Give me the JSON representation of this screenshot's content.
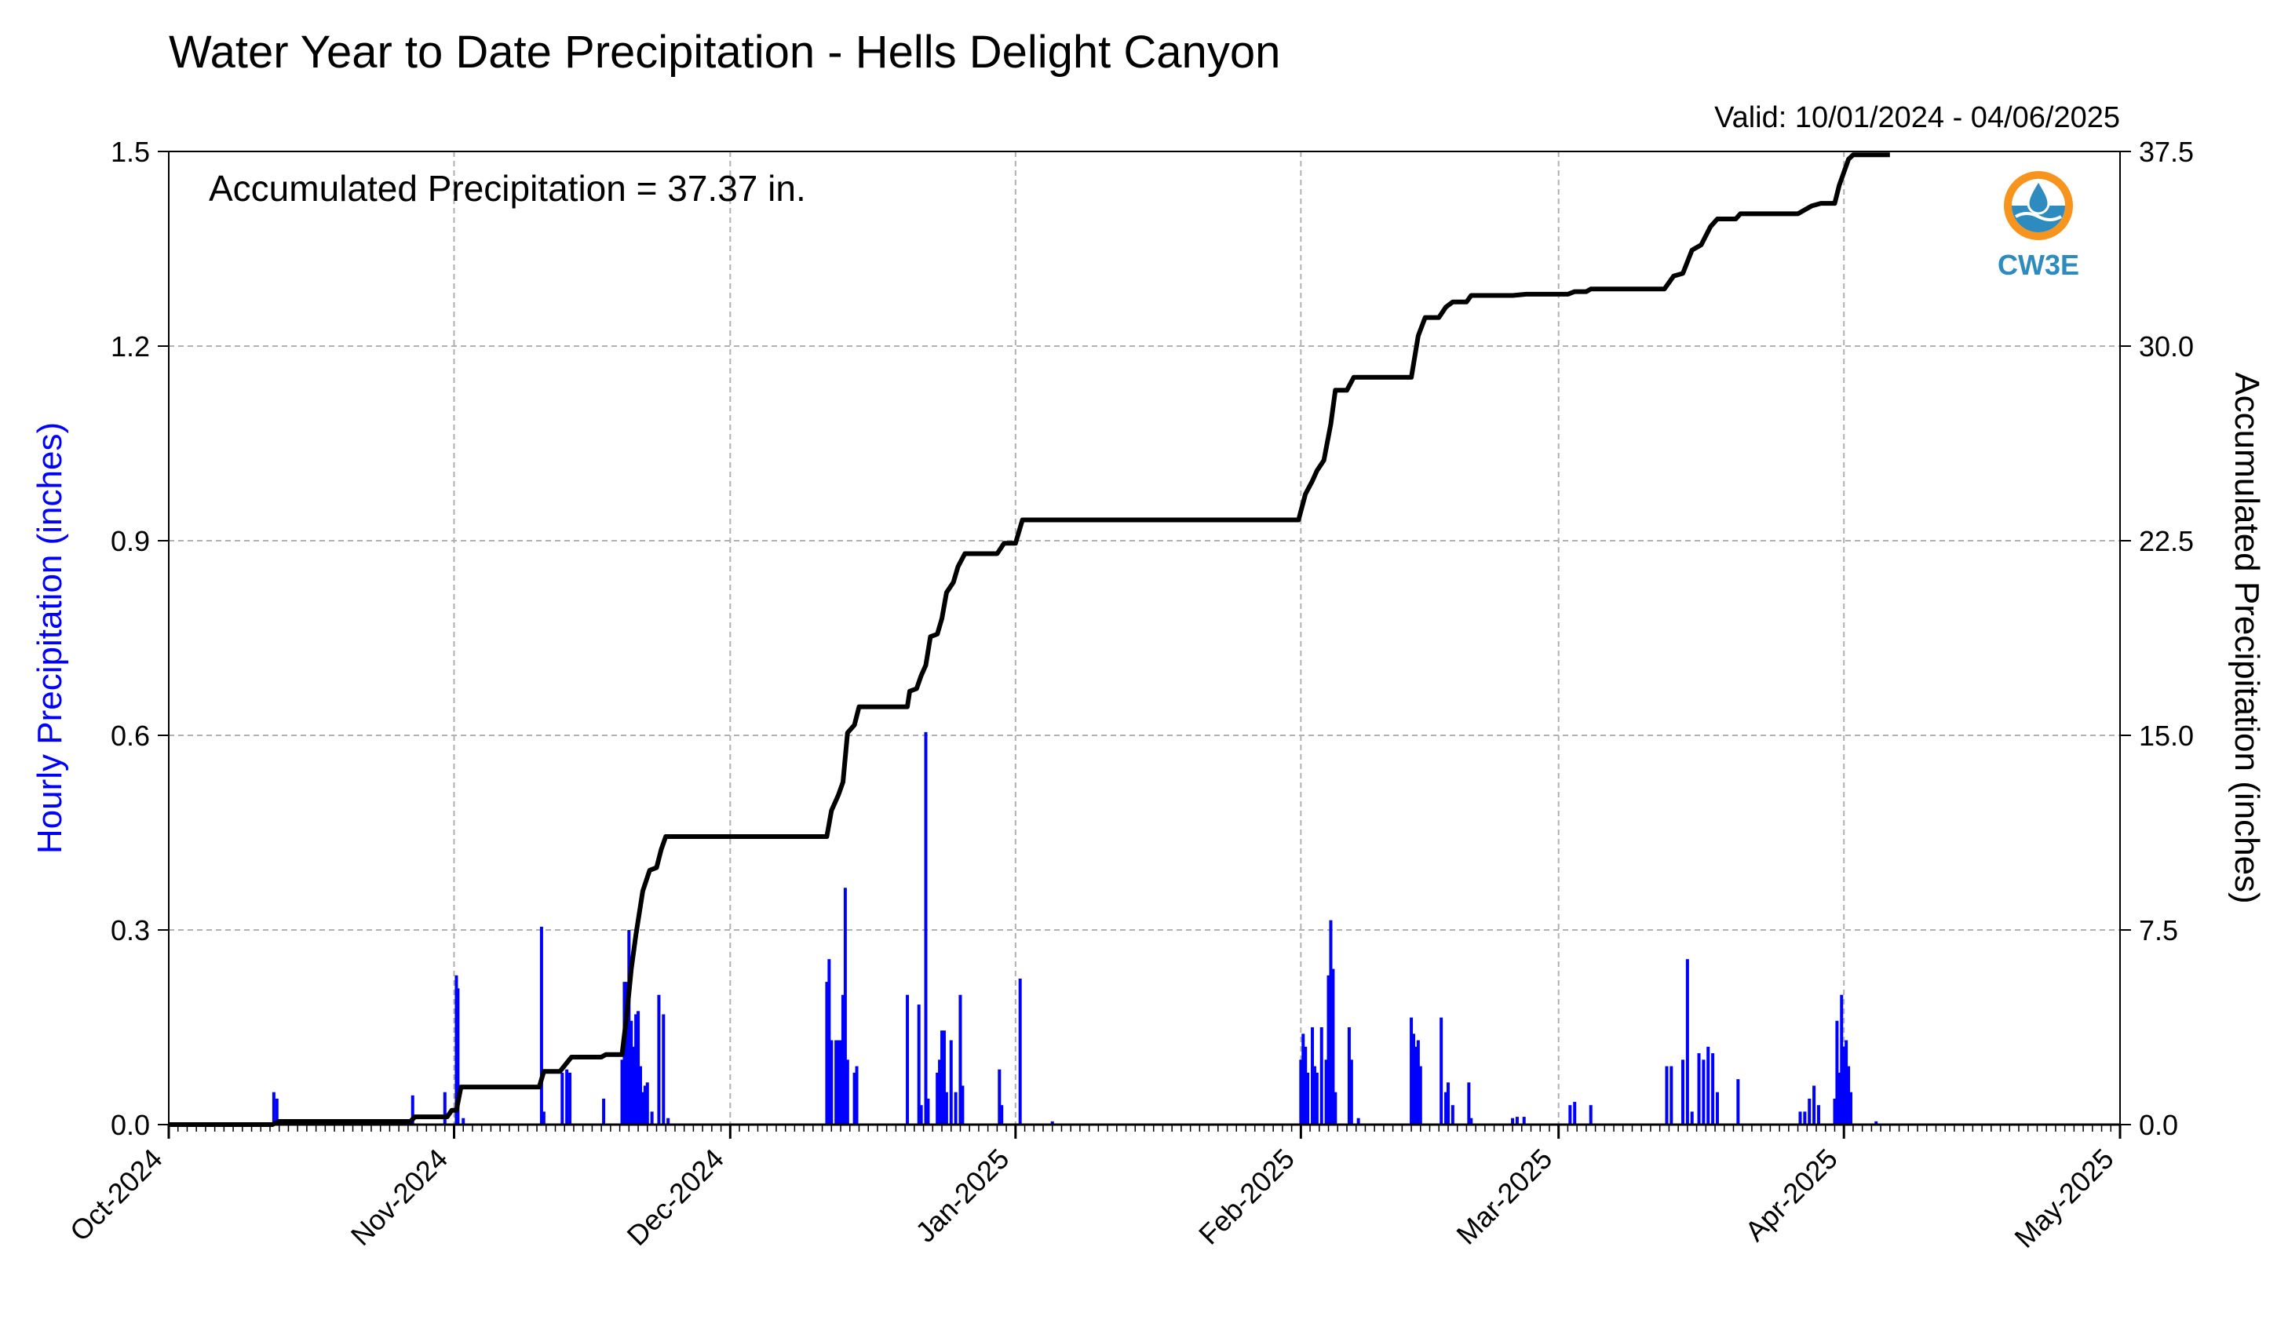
{
  "chart_data": {
    "type": "bar",
    "title": "Water Year to Date Precipitation - Hells Delight Canyon",
    "subtitle": "Valid: 10/01/2024 - 04/06/2025",
    "annotation": "Accumulated Precipitation = 37.37 in.",
    "logo_text": "CW3E",
    "ylabel": "Hourly Precipitation (inches)",
    "y2label": "Accumulated Precipitation (inches)",
    "ylim": [
      0,
      1.5
    ],
    "y2lim": [
      0,
      37.5
    ],
    "xlim": [
      "2024-10-01",
      "2025-05-01"
    ],
    "grid": true,
    "colors": {
      "hourly": "#0000ff",
      "accumulated": "#000000",
      "grid": "#b0b0b0",
      "ylabel": "#0000ff",
      "logo_ring": "#f7941d",
      "logo_body": "#2e8bc0"
    },
    "yticks": [
      "0.0",
      "0.3",
      "0.6",
      "0.9",
      "1.2",
      "1.5"
    ],
    "y2ticks": [
      "0.0",
      "7.5",
      "15.0",
      "22.5",
      "30.0",
      "37.5"
    ],
    "xticks": [
      {
        "date": "2024-10-01",
        "label": "Oct-2024"
      },
      {
        "date": "2024-11-01",
        "label": "Nov-2024"
      },
      {
        "date": "2024-12-01",
        "label": "Dec-2024"
      },
      {
        "date": "2025-01-01",
        "label": "Jan-2025"
      },
      {
        "date": "2025-02-01",
        "label": "Feb-2025"
      },
      {
        "date": "2025-03-01",
        "label": "Mar-2025"
      },
      {
        "date": "2025-04-01",
        "label": "Apr-2025"
      },
      {
        "date": "2025-05-01",
        "label": "May-2025"
      }
    ],
    "series": [
      {
        "name": "Hourly Precipitation",
        "type": "bar",
        "points": [
          [
            "2024-10-12T10:00",
            0.05
          ],
          [
            "2024-10-12T18:00",
            0.04
          ],
          [
            "2024-10-27T12:00",
            0.045
          ],
          [
            "2024-10-31T00:00",
            0.05
          ],
          [
            "2024-11-01T06:00",
            0.23
          ],
          [
            "2024-11-01T10:00",
            0.21
          ],
          [
            "2024-11-02T00:00",
            0.01
          ],
          [
            "2024-11-10T12:00",
            0.305
          ],
          [
            "2024-11-10T18:00",
            0.02
          ],
          [
            "2024-11-12T18:00",
            0.08
          ],
          [
            "2024-11-13T06:00",
            0.085
          ],
          [
            "2024-11-13T14:00",
            0.08
          ],
          [
            "2024-11-17T06:00",
            0.04
          ],
          [
            "2024-11-19T06:00",
            0.1
          ],
          [
            "2024-11-19T12:00",
            0.22
          ],
          [
            "2024-11-19T18:00",
            0.22
          ],
          [
            "2024-11-20T00:00",
            0.3
          ],
          [
            "2024-11-20T06:00",
            0.16
          ],
          [
            "2024-11-20T12:00",
            0.12
          ],
          [
            "2024-11-20T18:00",
            0.17
          ],
          [
            "2024-11-21T00:00",
            0.175
          ],
          [
            "2024-11-21T06:00",
            0.09
          ],
          [
            "2024-11-21T12:00",
            0.05
          ],
          [
            "2024-11-21T18:00",
            0.06
          ],
          [
            "2024-11-22T00:00",
            0.065
          ],
          [
            "2024-11-22T12:00",
            0.02
          ],
          [
            "2024-11-23T06:00",
            0.2
          ],
          [
            "2024-11-23T18:00",
            0.17
          ],
          [
            "2024-11-24T06:00",
            0.01
          ],
          [
            "2024-12-11T12:00",
            0.22
          ],
          [
            "2024-12-11T18:00",
            0.255
          ],
          [
            "2024-12-12T00:00",
            0.13
          ],
          [
            "2024-12-12T12:00",
            0.13
          ],
          [
            "2024-12-12T18:00",
            0.13
          ],
          [
            "2024-12-13T00:00",
            0.13
          ],
          [
            "2024-12-13T06:00",
            0.2
          ],
          [
            "2024-12-13T12:00",
            0.365
          ],
          [
            "2024-12-13T18:00",
            0.1
          ],
          [
            "2024-12-14T12:00",
            0.08
          ],
          [
            "2024-12-14T18:00",
            0.09
          ],
          [
            "2024-12-20T06:00",
            0.2
          ],
          [
            "2024-12-21T12:00",
            0.185
          ],
          [
            "2024-12-21T18:00",
            0.03
          ],
          [
            "2024-12-22T06:00",
            0.605
          ],
          [
            "2024-12-22T12:00",
            0.04
          ],
          [
            "2024-12-23T12:00",
            0.08
          ],
          [
            "2024-12-23T18:00",
            0.1
          ],
          [
            "2024-12-24T00:00",
            0.145
          ],
          [
            "2024-12-24T06:00",
            0.145
          ],
          [
            "2024-12-24T12:00",
            0.05
          ],
          [
            "2024-12-25T00:00",
            0.13
          ],
          [
            "2024-12-25T12:00",
            0.05
          ],
          [
            "2024-12-26T00:00",
            0.2
          ],
          [
            "2024-12-26T06:00",
            0.06
          ],
          [
            "2024-12-30T06:00",
            0.085
          ],
          [
            "2024-12-30T12:00",
            0.03
          ],
          [
            "2025-01-01T12:00",
            0.225
          ],
          [
            "2025-01-05T00:00",
            0.005
          ],
          [
            "2025-02-01T00:00",
            0.1
          ],
          [
            "2025-02-01T06:00",
            0.14
          ],
          [
            "2025-02-01T12:00",
            0.12
          ],
          [
            "2025-02-01T18:00",
            0.08
          ],
          [
            "2025-02-02T06:00",
            0.15
          ],
          [
            "2025-02-02T12:00",
            0.09
          ],
          [
            "2025-02-02T18:00",
            0.08
          ],
          [
            "2025-02-03T06:00",
            0.15
          ],
          [
            "2025-02-03T18:00",
            0.1
          ],
          [
            "2025-02-04T00:00",
            0.23
          ],
          [
            "2025-02-04T06:00",
            0.315
          ],
          [
            "2025-02-04T12:00",
            0.24
          ],
          [
            "2025-02-04T18:00",
            0.05
          ],
          [
            "2025-02-06T06:00",
            0.15
          ],
          [
            "2025-02-06T12:00",
            0.1
          ],
          [
            "2025-02-07T06:00",
            0.01
          ],
          [
            "2025-02-13T00:00",
            0.165
          ],
          [
            "2025-02-13T06:00",
            0.14
          ],
          [
            "2025-02-13T12:00",
            0.12
          ],
          [
            "2025-02-13T18:00",
            0.13
          ],
          [
            "2025-02-14T00:00",
            0.09
          ],
          [
            "2025-02-16T06:00",
            0.165
          ],
          [
            "2025-02-16T18:00",
            0.05
          ],
          [
            "2025-02-17T00:00",
            0.065
          ],
          [
            "2025-02-17T12:00",
            0.03
          ],
          [
            "2025-02-19T06:00",
            0.065
          ],
          [
            "2025-02-19T12:00",
            0.01
          ],
          [
            "2025-02-24T00:00",
            0.01
          ],
          [
            "2025-02-24T12:00",
            0.012
          ],
          [
            "2025-02-25T06:00",
            0.012
          ],
          [
            "2025-03-02T06:00",
            0.03
          ],
          [
            "2025-03-02T18:00",
            0.035
          ],
          [
            "2025-03-04T12:00",
            0.03
          ],
          [
            "2025-03-12T18:00",
            0.09
          ],
          [
            "2025-03-13T06:00",
            0.09
          ],
          [
            "2025-03-14T12:00",
            0.1
          ],
          [
            "2025-03-15T00:00",
            0.255
          ],
          [
            "2025-03-15T12:00",
            0.02
          ],
          [
            "2025-03-16T06:00",
            0.11
          ],
          [
            "2025-03-16T18:00",
            0.1
          ],
          [
            "2025-03-17T06:00",
            0.12
          ],
          [
            "2025-03-17T18:00",
            0.11
          ],
          [
            "2025-03-18T06:00",
            0.05
          ],
          [
            "2025-03-20T12:00",
            0.07
          ],
          [
            "2025-03-27T06:00",
            0.02
          ],
          [
            "2025-03-27T18:00",
            0.02
          ],
          [
            "2025-03-28T06:00",
            0.04
          ],
          [
            "2025-03-28T18:00",
            0.06
          ],
          [
            "2025-03-29T06:00",
            0.03
          ],
          [
            "2025-03-31T00:00",
            0.04
          ],
          [
            "2025-03-31T06:00",
            0.16
          ],
          [
            "2025-03-31T12:00",
            0.08
          ],
          [
            "2025-03-31T18:00",
            0.2
          ],
          [
            "2025-04-01T00:00",
            0.12
          ],
          [
            "2025-04-01T06:00",
            0.13
          ],
          [
            "2025-04-01T12:00",
            0.09
          ],
          [
            "2025-04-01T18:00",
            0.05
          ],
          [
            "2025-04-04T12:00",
            0.005
          ]
        ]
      },
      {
        "name": "Accumulated Precipitation",
        "type": "line",
        "points": [
          [
            "2024-10-01T00:00",
            0.0
          ],
          [
            "2024-10-12T06:00",
            0.0
          ],
          [
            "2024-10-13T00:00",
            0.12
          ],
          [
            "2024-10-27T06:00",
            0.12
          ],
          [
            "2024-10-27T18:00",
            0.3
          ],
          [
            "2024-10-31T06:00",
            0.3
          ],
          [
            "2024-10-31T18:00",
            0.55
          ],
          [
            "2024-11-01T06:00",
            0.55
          ],
          [
            "2024-11-01T18:00",
            1.45
          ],
          [
            "2024-11-10T06:00",
            1.45
          ],
          [
            "2024-11-10T18:00",
            2.05
          ],
          [
            "2024-11-12T12:00",
            2.05
          ],
          [
            "2024-11-13T18:00",
            2.6
          ],
          [
            "2024-11-17T00:00",
            2.6
          ],
          [
            "2024-11-17T12:00",
            2.7
          ],
          [
            "2024-11-19T06:00",
            2.7
          ],
          [
            "2024-11-19T18:00",
            4.2
          ],
          [
            "2024-11-20T06:00",
            6.0
          ],
          [
            "2024-11-20T18:00",
            7.3
          ],
          [
            "2024-11-21T12:00",
            9.0
          ],
          [
            "2024-11-22T06:00",
            9.8
          ],
          [
            "2024-11-23T00:00",
            9.9
          ],
          [
            "2024-11-23T12:00",
            10.6
          ],
          [
            "2024-11-24T00:00",
            11.1
          ],
          [
            "2024-12-11T12:00",
            11.1
          ],
          [
            "2024-12-12T00:00",
            12.1
          ],
          [
            "2024-12-12T18:00",
            12.7
          ],
          [
            "2024-12-13T06:00",
            13.2
          ],
          [
            "2024-12-13T18:00",
            15.1
          ],
          [
            "2024-12-14T12:00",
            15.4
          ],
          [
            "2024-12-15T00:00",
            16.1
          ],
          [
            "2024-12-20T06:00",
            16.1
          ],
          [
            "2024-12-20T12:00",
            16.7
          ],
          [
            "2024-12-21T06:00",
            16.8
          ],
          [
            "2024-12-21T18:00",
            17.3
          ],
          [
            "2024-12-22T06:00",
            17.7
          ],
          [
            "2024-12-22T18:00",
            18.8
          ],
          [
            "2024-12-23T12:00",
            18.9
          ],
          [
            "2024-12-24T00:00",
            19.5
          ],
          [
            "2024-12-24T12:00",
            20.5
          ],
          [
            "2024-12-25T06:00",
            20.9
          ],
          [
            "2024-12-25T18:00",
            21.5
          ],
          [
            "2024-12-26T12:00",
            22.0
          ],
          [
            "2024-12-30T00:00",
            22.0
          ],
          [
            "2024-12-30T18:00",
            22.4
          ],
          [
            "2025-01-01T00:00",
            22.4
          ],
          [
            "2025-01-01T18:00",
            23.3
          ],
          [
            "2025-01-31T18:00",
            23.3
          ],
          [
            "2025-02-01T12:00",
            24.3
          ],
          [
            "2025-02-02T06:00",
            24.8
          ],
          [
            "2025-02-02T18:00",
            25.2
          ],
          [
            "2025-02-03T12:00",
            25.6
          ],
          [
            "2025-02-04T06:00",
            27.0
          ],
          [
            "2025-02-04T18:00",
            28.3
          ],
          [
            "2025-02-06T00:00",
            28.3
          ],
          [
            "2025-02-06T18:00",
            28.8
          ],
          [
            "2025-02-13T00:00",
            28.8
          ],
          [
            "2025-02-13T18:00",
            30.4
          ],
          [
            "2025-02-14T12:00",
            31.1
          ],
          [
            "2025-02-16T00:00",
            31.1
          ],
          [
            "2025-02-16T18:00",
            31.5
          ],
          [
            "2025-02-17T12:00",
            31.7
          ],
          [
            "2025-02-19T00:00",
            31.7
          ],
          [
            "2025-02-19T12:00",
            31.95
          ],
          [
            "2025-02-24T00:00",
            31.95
          ],
          [
            "2025-02-25T12:00",
            32.0
          ],
          [
            "2025-03-02T00:00",
            32.0
          ],
          [
            "2025-03-02T18:00",
            32.1
          ],
          [
            "2025-03-04T00:00",
            32.1
          ],
          [
            "2025-03-04T12:00",
            32.2
          ],
          [
            "2025-03-12T12:00",
            32.2
          ],
          [
            "2025-03-13T12:00",
            32.7
          ],
          [
            "2025-03-14T12:00",
            32.8
          ],
          [
            "2025-03-15T12:00",
            33.7
          ],
          [
            "2025-03-16T12:00",
            33.9
          ],
          [
            "2025-03-17T12:00",
            34.6
          ],
          [
            "2025-03-18T06:00",
            34.9
          ],
          [
            "2025-03-20T06:00",
            34.9
          ],
          [
            "2025-03-20T18:00",
            35.1
          ],
          [
            "2025-03-27T00:00",
            35.1
          ],
          [
            "2025-03-28T12:00",
            35.4
          ],
          [
            "2025-03-29T12:00",
            35.5
          ],
          [
            "2025-03-31T00:00",
            35.5
          ],
          [
            "2025-03-31T12:00",
            36.2
          ],
          [
            "2025-04-01T00:00",
            36.7
          ],
          [
            "2025-04-01T12:00",
            37.2
          ],
          [
            "2025-04-02T00:00",
            37.37
          ],
          [
            "2025-04-06T00:00",
            37.37
          ]
        ]
      }
    ]
  }
}
